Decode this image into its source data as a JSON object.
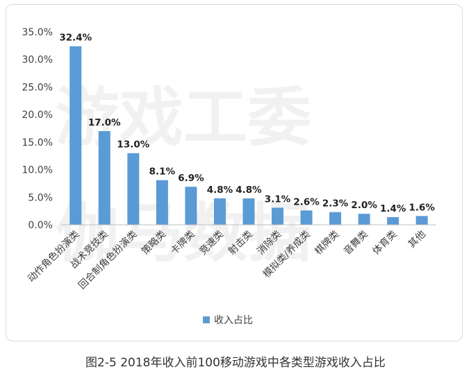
{
  "caption": "图2-5 2018年收入前100移动游戏中各类型游戏收入占比",
  "watermark": {
    "line1": "游戏工委",
    "line2": "伽马数据"
  },
  "legend_label": "收入占比",
  "colors": {
    "bar": "#5b9bd5",
    "axis": "#bfbfbf",
    "text": "#404040"
  },
  "chart_data": {
    "type": "bar",
    "categories": [
      "动作角色扮演类",
      "战术竞技类",
      "回合制角色扮演类",
      "策略类",
      "卡牌类",
      "竞速类",
      "射击类",
      "消除类",
      "模拟类/养成类",
      "棋牌类",
      "音舞类",
      "体育类",
      "其他"
    ],
    "series": [
      {
        "name": "收入占比",
        "values": [
          32.4,
          17.0,
          13.0,
          8.1,
          6.9,
          4.8,
          4.8,
          3.1,
          2.6,
          2.3,
          2.0,
          1.4,
          1.6
        ]
      }
    ],
    "data_labels": [
      "32.4%",
      "17.0%",
      "13.0%",
      "8.1%",
      "6.9%",
      "4.8%",
      "4.8%",
      "3.1%",
      "2.6%",
      "2.3%",
      "2.0%",
      "1.4%",
      "1.6%"
    ],
    "y_ticks": [
      "0.0%",
      "5.0%",
      "10.0%",
      "15.0%",
      "20.0%",
      "25.0%",
      "30.0%",
      "35.0%"
    ],
    "ylim": [
      0,
      35
    ],
    "legend_position": "bottom",
    "grid": false
  }
}
